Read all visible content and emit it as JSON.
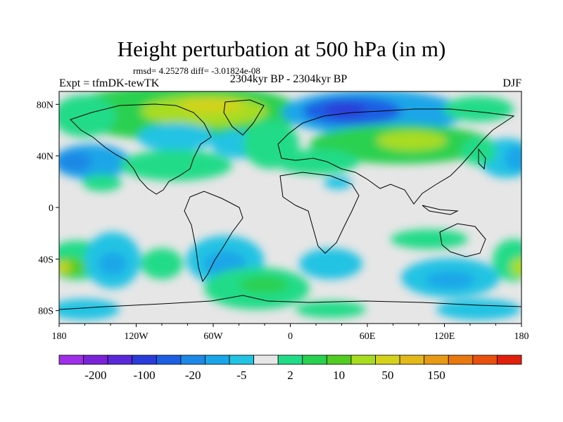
{
  "header": {
    "title": "Height perturbation at 500 hPa (in m)",
    "stats": "rmsd= 4.25278 diff= -3.01824e-08",
    "experiment": "Expt = tfmDK-tewTK",
    "period": "2304kyr BP - 2304kyr BP",
    "season": "DJF"
  },
  "map": {
    "lat_labels": [
      "80N",
      "40N",
      "0",
      "40S",
      "80S"
    ],
    "lon_labels": [
      "180",
      "120W",
      "60W",
      "0",
      "60E",
      "120E",
      "180"
    ],
    "background_color": "#e6e6e6",
    "coastline_color": "#000000"
  },
  "colorbar": {
    "labels": [
      "-200",
      "-100",
      "-20",
      "-5",
      "2",
      "10",
      "50",
      "150"
    ],
    "colors": [
      "#9e2ee8",
      "#7a22d8",
      "#5a28d8",
      "#2a3cd8",
      "#1d5fe3",
      "#1e88e5",
      "#1aa6e8",
      "#22c3e3",
      "#e6e6e6",
      "#22db88",
      "#2ad050",
      "#52cc22",
      "#a8dc20",
      "#d4d21c",
      "#e2b81a",
      "#e69a16",
      "#e87810",
      "#e8500e",
      "#e0200c"
    ]
  }
}
